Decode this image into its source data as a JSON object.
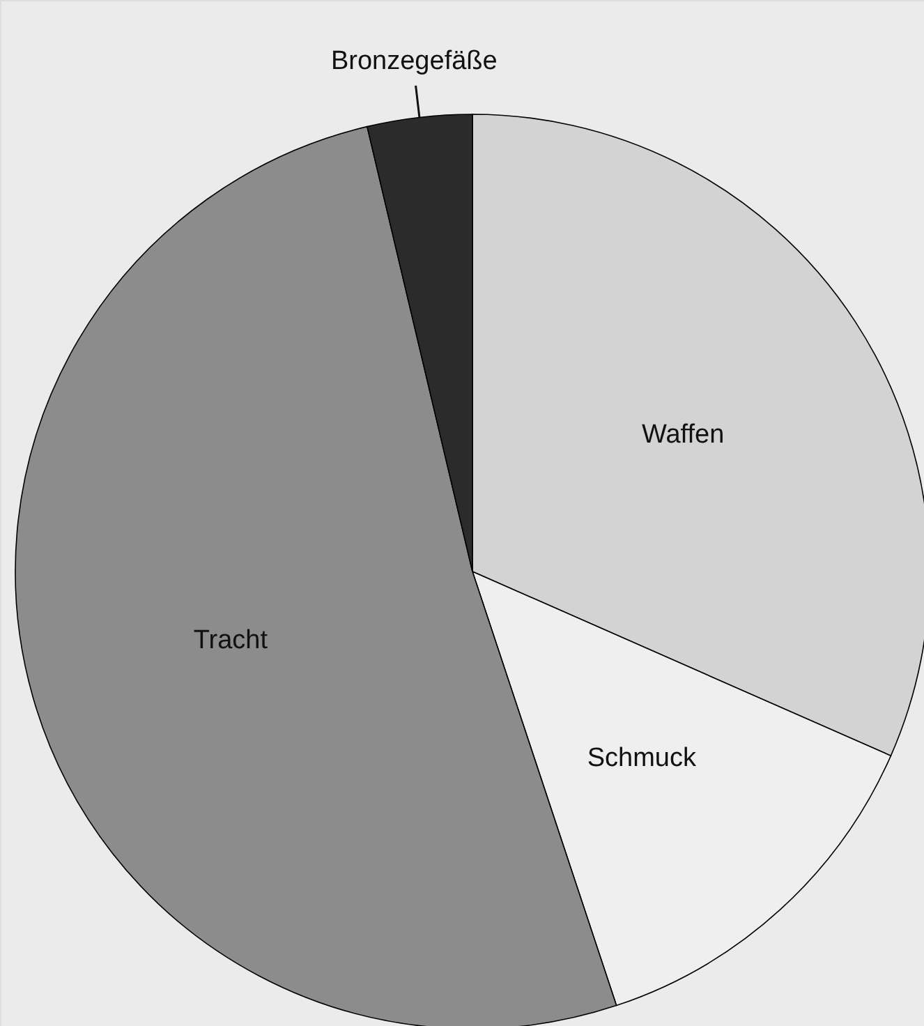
{
  "chart_data": {
    "type": "pie",
    "categories": [
      "Waffen",
      "Schmuck",
      "Tracht",
      "Bronzegefäße"
    ],
    "values": [
      31.6,
      13.3,
      51.4,
      3.7
    ],
    "colors": [
      "#d3d3d3",
      "#efefef",
      "#8c8c8c",
      "#2b2b2b"
    ]
  }
}
